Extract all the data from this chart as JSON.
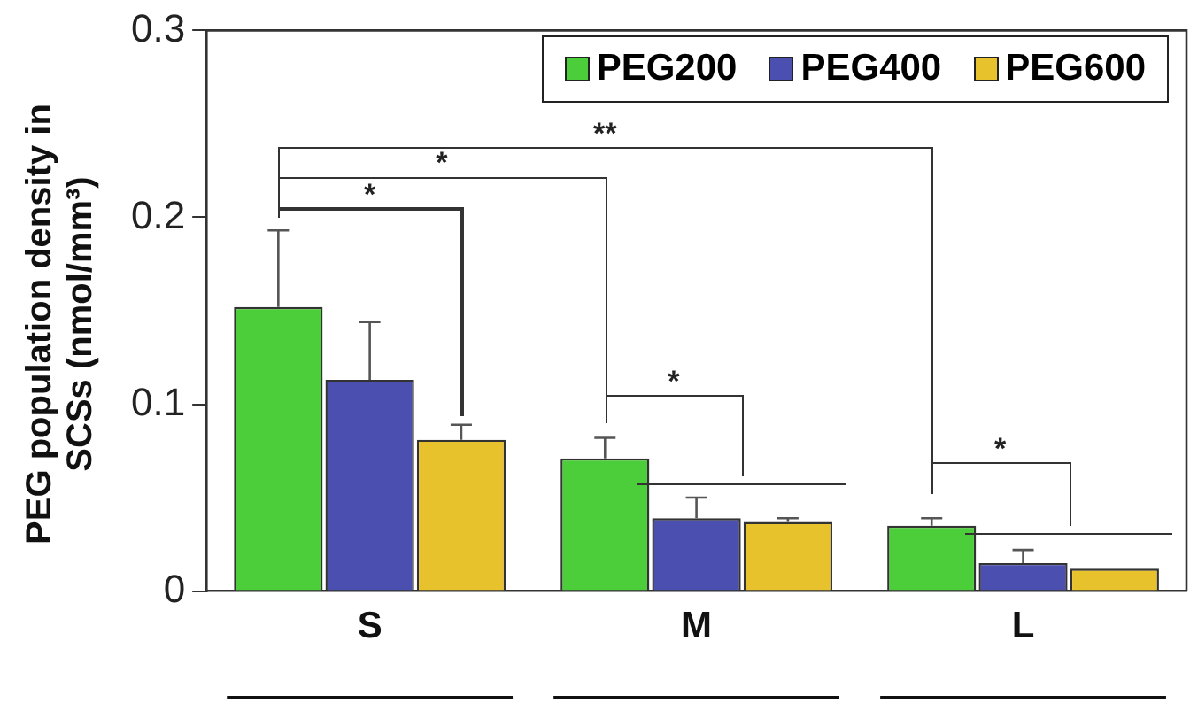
{
  "chart_data": {
    "type": "bar",
    "ylabel": "PEG population density in SCSs (nmol/mm³)",
    "categories": [
      "S",
      "M",
      "L"
    ],
    "series": [
      {
        "name": "PEG200",
        "color": "#4ccd3a",
        "values": [
          0.152,
          0.071,
          0.035
        ],
        "errors": [
          0.041,
          0.011,
          0.004
        ]
      },
      {
        "name": "PEG400",
        "color": "#4a4fb0",
        "values": [
          0.113,
          0.039,
          0.015
        ],
        "errors": [
          0.031,
          0.011,
          0.007
        ]
      },
      {
        "name": "PEG600",
        "color": "#e8c22c",
        "values": [
          0.081,
          0.037,
          0.012
        ],
        "errors": [
          0.008,
          0.002,
          null
        ]
      }
    ],
    "ylim": [
      0,
      0.3
    ],
    "yticks": [
      0,
      0.1,
      0.2,
      0.3
    ],
    "grid": false,
    "legend": "top right",
    "annotations": [
      "*",
      "*",
      "**",
      "*",
      "*"
    ]
  }
}
